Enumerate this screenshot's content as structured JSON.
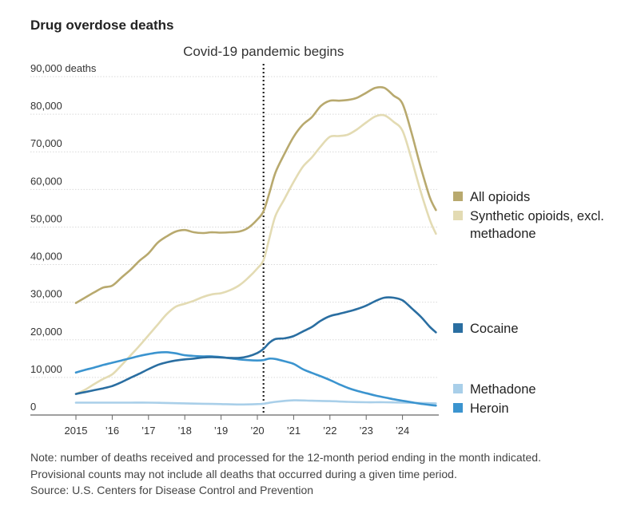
{
  "title": "Drug overdose deaths",
  "notes": [
    "Note: number of deaths received and processed for the 12-month period ending in the month indicated.",
    "Provisional counts may not include all deaths that occurred during a given time period.",
    "Source: U.S. Centers for Disease Control and Prevention"
  ],
  "chart_data": {
    "type": "line",
    "title": "Drug overdose deaths",
    "y_unit_label": "90,000 deaths",
    "yticks": [
      {
        "value": 0,
        "label": "0"
      },
      {
        "value": 10000,
        "label": "10,000"
      },
      {
        "value": 20000,
        "label": "20,000"
      },
      {
        "value": 30000,
        "label": "30,000"
      },
      {
        "value": 40000,
        "label": "40,000"
      },
      {
        "value": 50000,
        "label": "50,000"
      },
      {
        "value": 60000,
        "label": "60,000"
      },
      {
        "value": 70000,
        "label": "70,000"
      },
      {
        "value": 80000,
        "label": "80,000"
      },
      {
        "value": 90000,
        "label": "90,000 deaths"
      }
    ],
    "xticks": [
      {
        "value": 2015,
        "label": "2015"
      },
      {
        "value": 2016,
        "label": "’16"
      },
      {
        "value": 2017,
        "label": "’17"
      },
      {
        "value": 2018,
        "label": "’18"
      },
      {
        "value": 2019,
        "label": "’19"
      },
      {
        "value": 2020,
        "label": "’20"
      },
      {
        "value": 2021,
        "label": "’21"
      },
      {
        "value": 2022,
        "label": "’22"
      },
      {
        "value": 2023,
        "label": "’23"
      },
      {
        "value": 2024,
        "label": "’24"
      }
    ],
    "xlim": [
      2015,
      2025
    ],
    "ylim": [
      0,
      90000
    ],
    "grid": true,
    "annotation": {
      "x": 2020.17,
      "label": "Covid-19 pandemic begins"
    },
    "series": [
      {
        "name": "All opioids",
        "color": "#b8a96e",
        "points": [
          [
            2015,
            29800
          ],
          [
            2015.25,
            31200
          ],
          [
            2015.5,
            32600
          ],
          [
            2015.75,
            33900
          ],
          [
            2016,
            34400
          ],
          [
            2016.25,
            36500
          ],
          [
            2016.5,
            38600
          ],
          [
            2016.75,
            41000
          ],
          [
            2017,
            43000
          ],
          [
            2017.25,
            45800
          ],
          [
            2017.5,
            47500
          ],
          [
            2017.75,
            48800
          ],
          [
            2018,
            49200
          ],
          [
            2018.25,
            48600
          ],
          [
            2018.5,
            48400
          ],
          [
            2018.75,
            48600
          ],
          [
            2019,
            48500
          ],
          [
            2019.25,
            48600
          ],
          [
            2019.5,
            48800
          ],
          [
            2019.75,
            49800
          ],
          [
            2020,
            52000
          ],
          [
            2020.17,
            54200
          ],
          [
            2020.33,
            59000
          ],
          [
            2020.5,
            64500
          ],
          [
            2020.75,
            69500
          ],
          [
            2021,
            74000
          ],
          [
            2021.25,
            77200
          ],
          [
            2021.5,
            79200
          ],
          [
            2021.75,
            82200
          ],
          [
            2022,
            83600
          ],
          [
            2022.25,
            83600
          ],
          [
            2022.5,
            83800
          ],
          [
            2022.75,
            84400
          ],
          [
            2023,
            85700
          ],
          [
            2023.25,
            87000
          ],
          [
            2023.5,
            87000
          ],
          [
            2023.75,
            85000
          ],
          [
            2024,
            82800
          ],
          [
            2024.25,
            75000
          ],
          [
            2024.5,
            66000
          ],
          [
            2024.75,
            58000
          ],
          [
            2024.92,
            54500
          ]
        ]
      },
      {
        "name": "Synthetic opioids, excl. methadone",
        "color": "#e3dbb3",
        "points": [
          [
            2015,
            5600
          ],
          [
            2015.25,
            6700
          ],
          [
            2015.5,
            8200
          ],
          [
            2015.75,
            9600
          ],
          [
            2016,
            10800
          ],
          [
            2016.25,
            13200
          ],
          [
            2016.5,
            15800
          ],
          [
            2016.75,
            18400
          ],
          [
            2017,
            21200
          ],
          [
            2017.25,
            24000
          ],
          [
            2017.5,
            26800
          ],
          [
            2017.75,
            28800
          ],
          [
            2018,
            29600
          ],
          [
            2018.25,
            30400
          ],
          [
            2018.5,
            31400
          ],
          [
            2018.75,
            32100
          ],
          [
            2019,
            32400
          ],
          [
            2019.25,
            33200
          ],
          [
            2019.5,
            34500
          ],
          [
            2019.75,
            36500
          ],
          [
            2020,
            39000
          ],
          [
            2020.17,
            41200
          ],
          [
            2020.33,
            47000
          ],
          [
            2020.5,
            53000
          ],
          [
            2020.75,
            57500
          ],
          [
            2021,
            62000
          ],
          [
            2021.25,
            66000
          ],
          [
            2021.5,
            68500
          ],
          [
            2021.75,
            71500
          ],
          [
            2022,
            74000
          ],
          [
            2022.25,
            74200
          ],
          [
            2022.5,
            74600
          ],
          [
            2022.75,
            76000
          ],
          [
            2023,
            77800
          ],
          [
            2023.25,
            79400
          ],
          [
            2023.5,
            79700
          ],
          [
            2023.75,
            78000
          ],
          [
            2024,
            75600
          ],
          [
            2024.25,
            68000
          ],
          [
            2024.5,
            59500
          ],
          [
            2024.75,
            52000
          ],
          [
            2024.92,
            48200
          ]
        ]
      },
      {
        "name": "Cocaine",
        "color": "#2a6ea1",
        "points": [
          [
            2015,
            5600
          ],
          [
            2015.25,
            6100
          ],
          [
            2015.5,
            6600
          ],
          [
            2015.75,
            7100
          ],
          [
            2016,
            7700
          ],
          [
            2016.25,
            8700
          ],
          [
            2016.5,
            9900
          ],
          [
            2016.75,
            11000
          ],
          [
            2017,
            12200
          ],
          [
            2017.25,
            13300
          ],
          [
            2017.5,
            14000
          ],
          [
            2017.75,
            14500
          ],
          [
            2018,
            14800
          ],
          [
            2018.25,
            15000
          ],
          [
            2018.5,
            15300
          ],
          [
            2018.75,
            15400
          ],
          [
            2019,
            15300
          ],
          [
            2019.25,
            15200
          ],
          [
            2019.5,
            15200
          ],
          [
            2019.75,
            15600
          ],
          [
            2020,
            16500
          ],
          [
            2020.17,
            17600
          ],
          [
            2020.33,
            19200
          ],
          [
            2020.5,
            20200
          ],
          [
            2020.75,
            20400
          ],
          [
            2021,
            21000
          ],
          [
            2021.25,
            22200
          ],
          [
            2021.5,
            23400
          ],
          [
            2021.75,
            25100
          ],
          [
            2022,
            26300
          ],
          [
            2022.25,
            26900
          ],
          [
            2022.5,
            27500
          ],
          [
            2022.75,
            28200
          ],
          [
            2023,
            29100
          ],
          [
            2023.25,
            30300
          ],
          [
            2023.5,
            31200
          ],
          [
            2023.75,
            31200
          ],
          [
            2024,
            30500
          ],
          [
            2024.25,
            28400
          ],
          [
            2024.5,
            26200
          ],
          [
            2024.75,
            23500
          ],
          [
            2024.92,
            22000
          ]
        ]
      },
      {
        "name": "Methadone",
        "color": "#a9cfe9",
        "points": [
          [
            2015,
            3300
          ],
          [
            2015.5,
            3300
          ],
          [
            2016,
            3300
          ],
          [
            2016.5,
            3300
          ],
          [
            2017,
            3300
          ],
          [
            2017.5,
            3200
          ],
          [
            2018,
            3100
          ],
          [
            2018.5,
            3000
          ],
          [
            2019,
            2900
          ],
          [
            2019.5,
            2800
          ],
          [
            2020,
            2900
          ],
          [
            2020.17,
            3000
          ],
          [
            2020.5,
            3500
          ],
          [
            2021,
            3900
          ],
          [
            2021.5,
            3800
          ],
          [
            2022,
            3700
          ],
          [
            2022.5,
            3500
          ],
          [
            2023,
            3400
          ],
          [
            2023.5,
            3400
          ],
          [
            2024,
            3300
          ],
          [
            2024.5,
            3200
          ],
          [
            2024.92,
            3100
          ]
        ]
      },
      {
        "name": "Heroin",
        "color": "#3b94cf",
        "points": [
          [
            2015,
            11300
          ],
          [
            2015.25,
            12000
          ],
          [
            2015.5,
            12600
          ],
          [
            2015.75,
            13300
          ],
          [
            2016,
            13900
          ],
          [
            2016.25,
            14500
          ],
          [
            2016.5,
            15100
          ],
          [
            2016.75,
            15700
          ],
          [
            2017,
            16200
          ],
          [
            2017.25,
            16600
          ],
          [
            2017.5,
            16700
          ],
          [
            2017.75,
            16400
          ],
          [
            2018,
            15900
          ],
          [
            2018.25,
            15700
          ],
          [
            2018.5,
            15600
          ],
          [
            2018.75,
            15600
          ],
          [
            2019,
            15400
          ],
          [
            2019.25,
            15100
          ],
          [
            2019.5,
            14800
          ],
          [
            2019.75,
            14600
          ],
          [
            2020,
            14500
          ],
          [
            2020.17,
            14600
          ],
          [
            2020.33,
            15000
          ],
          [
            2020.5,
            14900
          ],
          [
            2020.75,
            14300
          ],
          [
            2021,
            13600
          ],
          [
            2021.25,
            12200
          ],
          [
            2021.5,
            11200
          ],
          [
            2021.75,
            10300
          ],
          [
            2022,
            9300
          ],
          [
            2022.25,
            8200
          ],
          [
            2022.5,
            7200
          ],
          [
            2022.75,
            6400
          ],
          [
            2023,
            5800
          ],
          [
            2023.25,
            5200
          ],
          [
            2023.5,
            4700
          ],
          [
            2023.75,
            4200
          ],
          [
            2024,
            3800
          ],
          [
            2024.25,
            3400
          ],
          [
            2024.5,
            3000
          ],
          [
            2024.75,
            2700
          ],
          [
            2024.92,
            2500
          ]
        ]
      }
    ],
    "legend": [
      {
        "labels": [
          "All opioids"
        ],
        "color": "#b8a96e"
      },
      {
        "labels": [
          "Synthetic opioids, excl.",
          "methadone"
        ],
        "color": "#e3dbb3"
      },
      {
        "labels": [
          "Cocaine"
        ],
        "color": "#2a6ea1"
      },
      {
        "labels": [
          "Methadone"
        ],
        "color": "#a9cfe9"
      },
      {
        "labels": [
          "Heroin"
        ],
        "color": "#3b94cf"
      }
    ]
  }
}
